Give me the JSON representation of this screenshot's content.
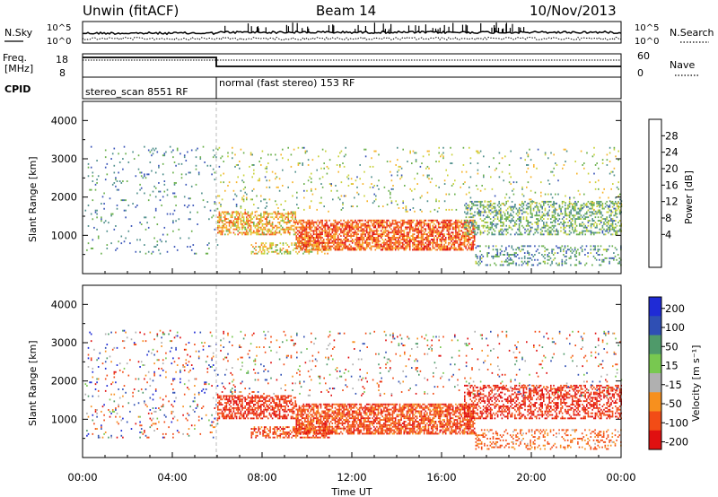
{
  "header": {
    "station": "Unwin (fitACF)",
    "beam": "Beam 14",
    "date": "10/Nov/2013"
  },
  "noise_panel": {
    "left_label": "N.Sky",
    "right_label": "N.Search",
    "left_ticks": [
      "10^5",
      "10^0"
    ],
    "right_ticks": [
      "10^5",
      "10^0"
    ]
  },
  "freq_panel": {
    "left_label_1": "Freq.",
    "left_label_2": "[MHz]",
    "left_ticks": [
      "18",
      "8"
    ],
    "right_label": "Nave",
    "right_ticks": [
      "60",
      "0"
    ]
  },
  "cpid_panel": {
    "label": "CPID",
    "segments": [
      {
        "name": "stereo_scan 8551 RF",
        "start_hour": 0,
        "end_hour": 6
      },
      {
        "name": "normal (fast stereo) 153 RF",
        "start_hour": 6,
        "end_hour": 24
      }
    ]
  },
  "power_panel": {
    "ylabel": "Slant Range [km]",
    "cbar_label": "Power [dB]",
    "cbar_ticks": [
      "28",
      "24",
      "20",
      "16",
      "12",
      "8",
      "4"
    ]
  },
  "velocity_panel": {
    "ylabel": "Slant Range [km]",
    "cbar_label": "Velocity [m s⁻¹]",
    "cbar_ticks": [
      "200",
      "100",
      "50",
      "15",
      "-15",
      "-50",
      "-100",
      "-200"
    ]
  },
  "xaxis": {
    "label": "Time UT",
    "ticks": [
      "00:00",
      "04:00",
      "08:00",
      "12:00",
      "16:00",
      "20:00",
      "00:00"
    ]
  },
  "chart_data": [
    {
      "type": "heatmap",
      "title": "Power [dB]",
      "xlabel": "Time UT",
      "ylabel": "Slant Range [km]",
      "xlim_hours": [
        0,
        24
      ],
      "ylim": [
        0,
        4500
      ],
      "yticks": [
        1000,
        2000,
        3000,
        4000
      ],
      "colorbar": {
        "label": "Power [dB]",
        "range": [
          0,
          30
        ],
        "ticks": [
          4,
          8,
          12,
          16,
          20,
          24,
          28
        ],
        "colors": [
          "#1f2bd6",
          "#3a55b8",
          "#4f8f8c",
          "#6ab04c",
          "#c9d23a",
          "#f7b52c",
          "#f77f1c",
          "#f24c16",
          "#e01010"
        ]
      },
      "echo_regions": [
        {
          "t_start": 0.1,
          "t_end": 6.0,
          "r_min": 500,
          "r_max": 3300,
          "density": 0.05,
          "power": [
            4,
            12
          ]
        },
        {
          "t_start": 6.0,
          "t_end": 9.5,
          "r_min": 1000,
          "r_max": 1600,
          "density": 0.55,
          "power": [
            12,
            26
          ]
        },
        {
          "t_start": 7.5,
          "t_end": 11.0,
          "r_min": 500,
          "r_max": 800,
          "density": 0.45,
          "power": [
            10,
            22
          ]
        },
        {
          "t_start": 9.5,
          "t_end": 17.5,
          "r_min": 600,
          "r_max": 1400,
          "density": 0.7,
          "power": [
            18,
            30
          ]
        },
        {
          "t_start": 17.0,
          "t_end": 24.0,
          "r_min": 1000,
          "r_max": 1900,
          "density": 0.4,
          "power": [
            6,
            16
          ]
        },
        {
          "t_start": 17.5,
          "t_end": 24.0,
          "r_min": 200,
          "r_max": 700,
          "density": 0.25,
          "power": [
            4,
            14
          ]
        },
        {
          "t_start": 6.0,
          "t_end": 24.0,
          "r_min": 1600,
          "r_max": 3300,
          "density": 0.05,
          "power": [
            6,
            20
          ]
        }
      ]
    },
    {
      "type": "heatmap",
      "title": "Velocity [m s⁻¹]",
      "xlabel": "Time UT",
      "ylabel": "Slant Range [km]",
      "xlim_hours": [
        0,
        24
      ],
      "ylim": [
        0,
        4500
      ],
      "yticks": [
        1000,
        2000,
        3000,
        4000
      ],
      "colorbar": {
        "label": "Velocity [m s⁻¹]",
        "range": [
          -250,
          250
        ],
        "ticks": [
          -200,
          -100,
          -50,
          -15,
          15,
          50,
          100,
          200
        ],
        "colors": [
          "#e01010",
          "#f24c16",
          "#f7901e",
          "#b0b0b0",
          "#78c850",
          "#4f9a6a",
          "#2f4fb4",
          "#1f2bd6"
        ]
      },
      "echo_regions": [
        {
          "t_start": 0.1,
          "t_end": 6.0,
          "r_min": 500,
          "r_max": 3300,
          "density": 0.07,
          "velocity": [
            -250,
            150
          ]
        },
        {
          "t_start": 6.0,
          "t_end": 9.5,
          "r_min": 1000,
          "r_max": 1600,
          "density": 0.6,
          "velocity": [
            -250,
            -120
          ]
        },
        {
          "t_start": 7.5,
          "t_end": 11.0,
          "r_min": 500,
          "r_max": 800,
          "density": 0.5,
          "velocity": [
            -250,
            -60
          ]
        },
        {
          "t_start": 9.5,
          "t_end": 17.5,
          "r_min": 600,
          "r_max": 1400,
          "density": 0.7,
          "velocity": [
            -250,
            -60
          ]
        },
        {
          "t_start": 17.0,
          "t_end": 24.0,
          "r_min": 1000,
          "r_max": 1900,
          "density": 0.45,
          "velocity": [
            -250,
            -150
          ]
        },
        {
          "t_start": 17.5,
          "t_end": 24.0,
          "r_min": 200,
          "r_max": 700,
          "density": 0.25,
          "velocity": [
            -200,
            -40
          ]
        },
        {
          "t_start": 6.0,
          "t_end": 24.0,
          "r_min": 1600,
          "r_max": 3300,
          "density": 0.05,
          "velocity": [
            -250,
            100
          ]
        }
      ]
    }
  ]
}
